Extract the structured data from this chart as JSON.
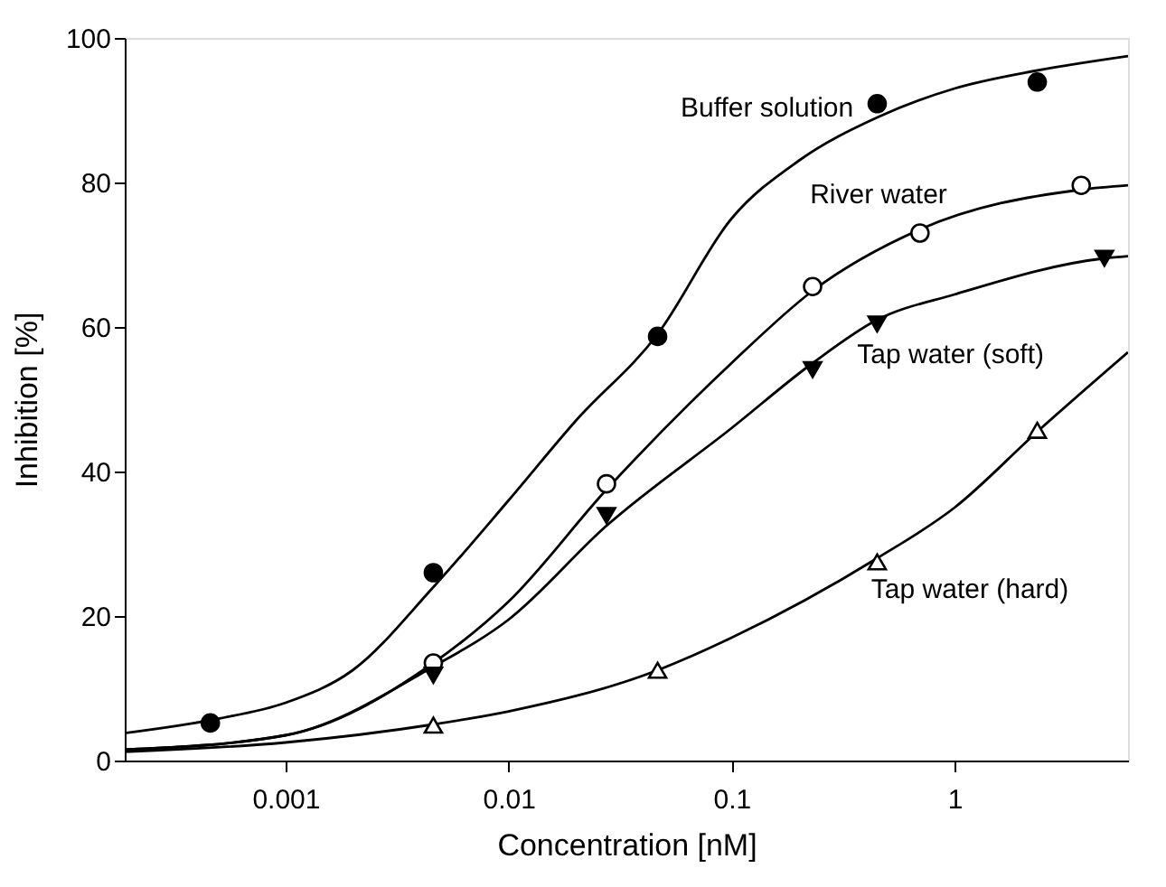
{
  "chart_data": {
    "type": "scatter",
    "xlabel": "Concentration [nM]",
    "ylabel": "Inhibition [%]",
    "log": "x",
    "xlim": [
      0.00019,
      6
    ],
    "xticks": [
      0.001,
      0.01,
      0.1,
      1
    ],
    "ylim": [
      0,
      100
    ],
    "yticks": [
      0,
      20,
      40,
      60,
      80,
      100
    ],
    "grid": false,
    "series": [
      {
        "type": "line",
        "color": "#000000",
        "marker": "none",
        "line_style": "solid",
        "x": [
          0.00019,
          0.0005,
          0.001,
          0.002,
          0.0046,
          0.01,
          0.02,
          0.0466,
          0.1,
          0.2,
          0.45,
          1,
          2.35,
          6
        ],
        "values": [
          3.8,
          5.8,
          8,
          12.5,
          24,
          36,
          47,
          59,
          75,
          83,
          89,
          93,
          95.5,
          97.5
        ]
      },
      {
        "type": "line",
        "color": "#000000",
        "marker": "none",
        "line_style": "solid",
        "x": [
          0.00019,
          0.001,
          0.0046,
          0.01,
          0.0275,
          0.1,
          0.231,
          0.7,
          3.7,
          6
        ],
        "values": [
          1.5,
          3.5,
          13.5,
          22,
          37.5,
          55,
          65,
          73.5,
          79,
          79.6
        ]
      },
      {
        "type": "line",
        "color": "#000000",
        "marker": "none",
        "line_style": "solid",
        "x": [
          0.00019,
          0.001,
          0.0046,
          0.01,
          0.0275,
          0.1,
          0.231,
          0.45,
          1,
          4.7,
          6
        ],
        "values": [
          1.5,
          3.5,
          13,
          19.5,
          32.5,
          46,
          55,
          61,
          64.5,
          69.5,
          69.8
        ]
      },
      {
        "type": "line",
        "color": "#000000",
        "marker": "none",
        "line_style": "solid",
        "x": [
          0.00019,
          0.001,
          0.0046,
          0.01,
          0.0466,
          0.1,
          0.45,
          1,
          2.35,
          6
        ],
        "values": [
          1.2,
          2.5,
          5,
          6.8,
          12.5,
          17,
          28,
          35,
          45.5,
          56.5
        ]
      },
      {
        "color": "#000000",
        "marker": "circle",
        "x": [
          0.00046,
          0.0046,
          0.0466,
          0.45,
          2.35
        ],
        "values": [
          5.2,
          26,
          58.7,
          90.9,
          93.9
        ]
      },
      {
        "color": "#ffffff",
        "marker": "circle",
        "x": [
          0.0046,
          0.0275,
          0.231,
          0.7,
          3.7
        ],
        "values": [
          13.5,
          38.3,
          65.6,
          73,
          79.6
        ]
      },
      {
        "color": "#000000",
        "marker": "triangle-down",
        "x": [
          0.0046,
          0.0275,
          0.231,
          0.45,
          4.7
        ],
        "values": [
          11.8,
          33.9,
          54.1,
          60.4,
          69.5
        ]
      },
      {
        "color": "#ffffff",
        "marker": "triangle",
        "x": [
          0.0046,
          0.0466,
          0.45,
          2.35
        ],
        "values": [
          4.9,
          12.5,
          27.5,
          45.7
        ]
      }
    ],
    "annotations": [
      "Buffer solution",
      "River water",
      "Tap water (soft)",
      "Tap water (hard)"
    ]
  }
}
